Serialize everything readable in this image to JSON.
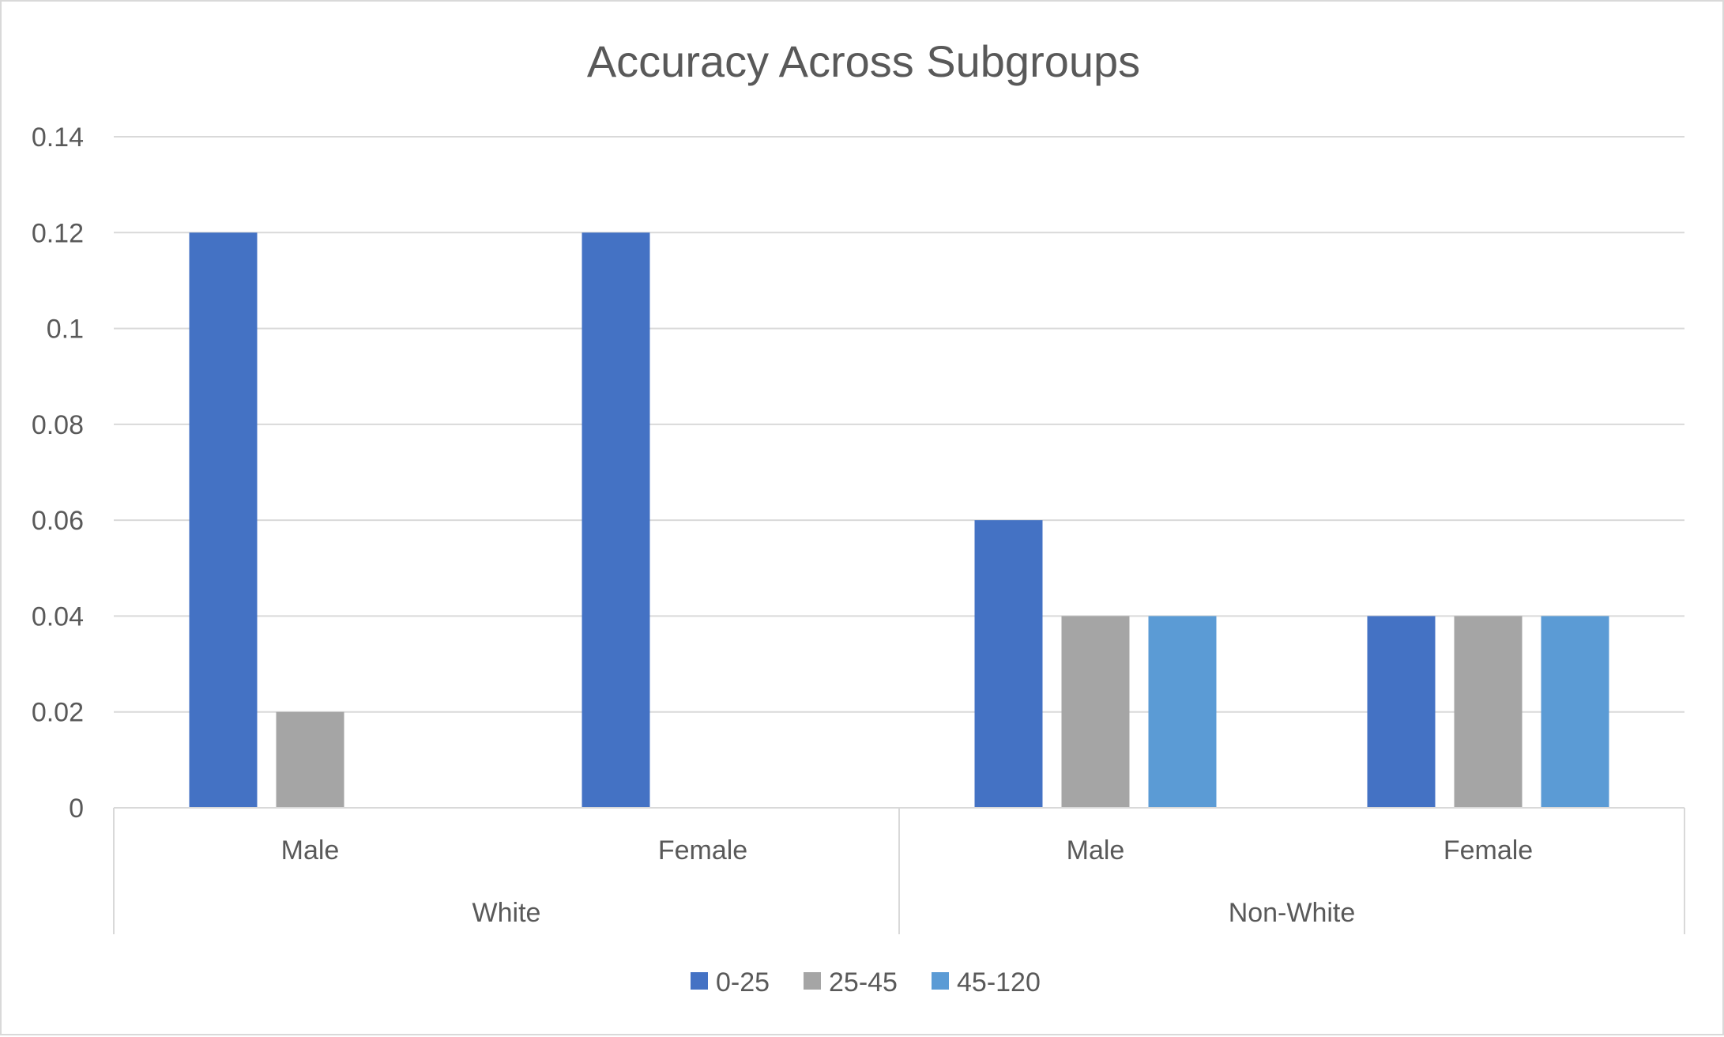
{
  "chart_data": {
    "type": "bar",
    "title": "Accuracy Across Subgroups",
    "xlabel": "",
    "ylabel": "",
    "ylim": [
      0,
      0.14
    ],
    "yticks": [
      "0",
      "0.02",
      "0.04",
      "0.06",
      "0.08",
      "0.1",
      "0.12",
      "0.14"
    ],
    "ytick_values": [
      0,
      0.02,
      0.04,
      0.06,
      0.08,
      0.1,
      0.12,
      0.14
    ],
    "grid": true,
    "legend_position": "bottom",
    "groups": [
      {
        "label": "White",
        "categories": [
          "Male",
          "Female"
        ]
      },
      {
        "label": "Non-White",
        "categories": [
          "Male",
          "Female"
        ]
      }
    ],
    "categories": [
      "Male",
      "Female",
      "Male",
      "Female"
    ],
    "series": [
      {
        "name": "0-25",
        "color": "#4472c4",
        "values": [
          0.12,
          0.12,
          0.06,
          0.04
        ]
      },
      {
        "name": "25-45",
        "color": "#a5a5a5",
        "values": [
          0.02,
          0,
          0.04,
          0.04
        ]
      },
      {
        "name": "45-120",
        "color": "#5b9bd5",
        "values": [
          0,
          0,
          0.04,
          0.04
        ]
      }
    ]
  }
}
